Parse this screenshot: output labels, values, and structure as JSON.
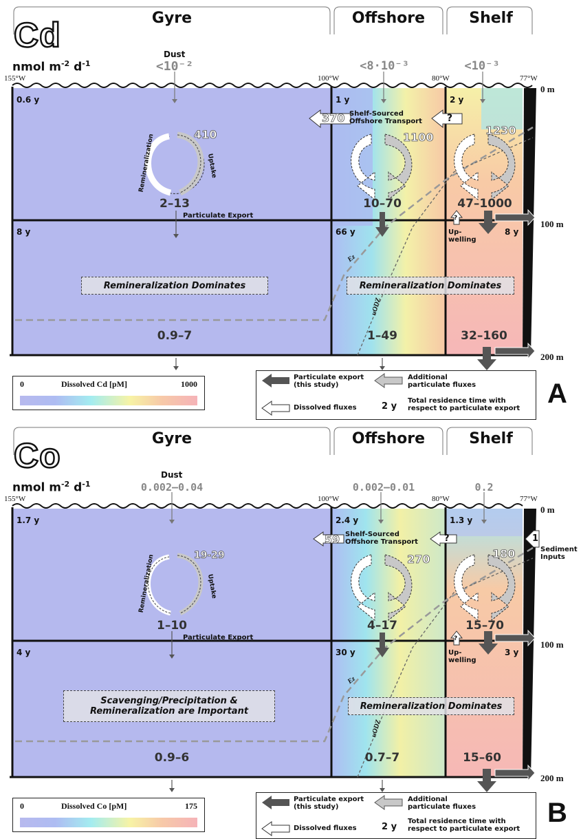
{
  "panelA": {
    "element": "Cd",
    "units_base": "nmol m",
    "units_exp1": "-2",
    "units_mid": " d",
    "units_exp2": "-1",
    "regions": {
      "gyre": "Gyre",
      "offshore": "Offshore",
      "shelf": "Shelf"
    },
    "lons": {
      "w155": "155°W",
      "w100": "100°W",
      "w80": "80°W",
      "w77": "77°W"
    },
    "depths": {
      "d0": "0 m",
      "d100": "100 m",
      "d200": "200 m"
    },
    "dust_label": "Dust",
    "dust_gyre": "<10⁻²",
    "dust_offshore": "<8·10⁻³",
    "dust_shelf": "<10⁻³",
    "res_gyre_top": "0.6 y",
    "res_off_top": "1 y",
    "res_shelf_top": "2 y",
    "res_gyre_mid": "8 y",
    "res_off_mid": "66 y",
    "res_shelf_mid": "8 y",
    "transport_out": "370",
    "transport_label": "Shelf-Sourced Offshore Transport",
    "transport_q": "?",
    "uptake_gyre": "410",
    "remin_label": "Remineralization",
    "uptake_label": "Uptake",
    "uptake_off": "1100",
    "uptake_shelf": "1230",
    "export_gyre": "2–13",
    "export_label": "Particulate Export",
    "export_off": "10–70",
    "export_shelf": "47–1000",
    "upwelling_q": "?",
    "upwelling_label": "Up-\nwelling",
    "ez": "Ez",
    "uodz": "uODZ",
    "dom_gyre": "Remineralization Dominates",
    "dom_off": "Remineralization Dominates",
    "deep_gyre": "0.9–7",
    "deep_off": "1–49",
    "deep_shelf": "32–160",
    "cbar_min": "0",
    "cbar_title": "Dissolved Cd [pM]",
    "cbar_max": "1000",
    "letter": "A"
  },
  "panelB": {
    "element": "Co",
    "units_base": "nmol m",
    "units_exp1": "-2",
    "units_mid": " d",
    "units_exp2": "-1",
    "regions": {
      "gyre": "Gyre",
      "offshore": "Offshore",
      "shelf": "Shelf"
    },
    "lons": {
      "w155": "155°W",
      "w100": "100°W",
      "w80": "80°W",
      "w77": "77°W"
    },
    "depths": {
      "d0": "0 m",
      "d100": "100 m",
      "d200": "200 m"
    },
    "dust_label": "Dust",
    "dust_gyre": "0.002–0.04",
    "dust_offshore": "0.002–0.01",
    "dust_shelf": "0.2",
    "res_gyre_top": "1.7 y",
    "res_off_top": "2.4 y",
    "res_shelf_top": "1.3 y",
    "res_gyre_mid": "4 y",
    "res_off_mid": "30 y",
    "res_shelf_mid": "3 y",
    "transport_out": "59",
    "transport_label": "Shelf-Sourced Offshore Transport",
    "transport_q": "?",
    "sediment_val": "1",
    "sediment_label": "Sediment Inputs",
    "uptake_gyre": "19-29",
    "remin_label": "Remineralization",
    "uptake_label": "Uptake",
    "uptake_off": "270",
    "uptake_shelf": "180",
    "export_gyre": "1–10",
    "export_label": "Particulate Export",
    "export_off": "4–17",
    "export_shelf": "15–70",
    "upwelling_q": "?",
    "upwelling_label": "Up-\nwelling",
    "ez": "Ez",
    "uodz": "uODZ",
    "dom_gyre": "Scavenging/Precipitation & Remineralization are Important",
    "dom_off": "Remineralization Dominates",
    "deep_gyre": "0.9–6",
    "deep_off": "0.7–7",
    "deep_shelf": "15–60",
    "cbar_min": "0",
    "cbar_title": "Dissolved Co [pM]",
    "cbar_max": "175",
    "letter": "B"
  },
  "legend": {
    "particulate_export": "Particulate export (this study)",
    "additional": "Additional particulate fluxes",
    "dissolved": "Dissolved fluxes",
    "res_sample": "2 y",
    "res_text": "Total residence time with respect to particulate export"
  },
  "colors": {
    "low": "#b7b9ee",
    "mid": "#a3ecf0",
    "yellow": "#f7f3a5",
    "high": "#f5b3b8",
    "dark_arrow": "#555555",
    "light_arrow": "#c8c8c8"
  }
}
